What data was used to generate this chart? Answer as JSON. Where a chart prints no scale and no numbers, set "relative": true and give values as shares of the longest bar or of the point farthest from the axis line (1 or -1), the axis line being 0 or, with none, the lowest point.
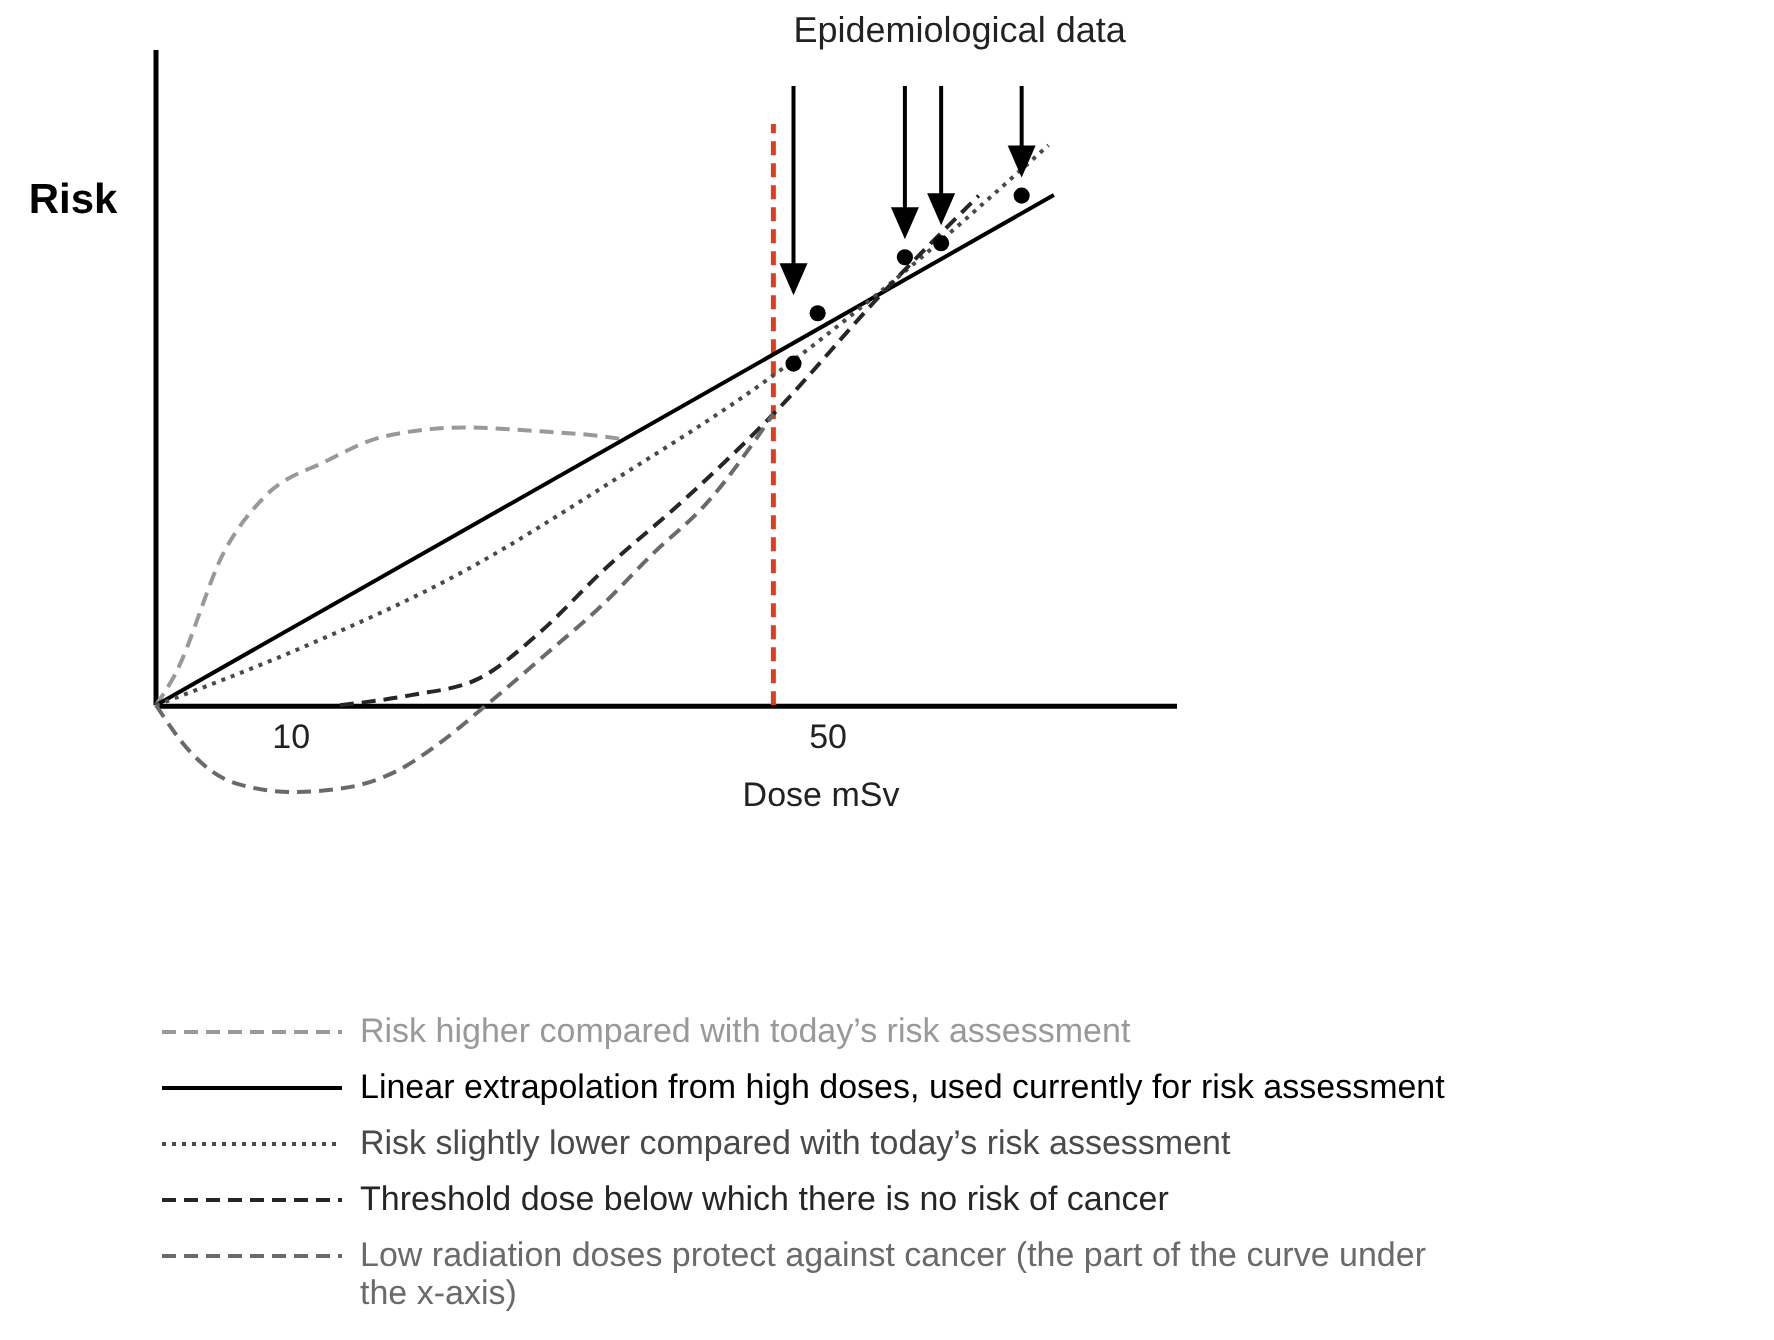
{
  "chart_data": {
    "type": "line",
    "relative": true,
    "xlabel": "Dose mSv",
    "ylabel": "Risk",
    "xlim": [
      0,
      76
    ],
    "xticks": [
      10,
      50
    ],
    "tick_labels": "x",
    "legend": "bottom",
    "annotations": [
      "Epidemiological data"
    ],
    "ref_lines": [
      {
        "axis": "x",
        "value": 46,
        "color": "#e03c1f",
        "line_style": "dashed"
      }
    ],
    "series": [
      {
        "name": "Risk higher compared with today’s risk assessment",
        "color": "#999999",
        "line_style": "dashed",
        "x": [
          0,
          1.4,
          5.1,
          8,
          12.7,
          17,
          23,
          28,
          33.3,
          34.8
        ],
        "values": [
          0,
          0.054,
          0.275,
          0.37,
          0.436,
          0.48,
          0.496,
          0.49,
          0.48,
          0.475
        ]
      },
      {
        "name": "Linear extrapolation from high doses, used currently for risk assessment",
        "color": "#000000",
        "line_style": "solid",
        "x": [
          0,
          66.9
        ],
        "values": [
          0,
          0.911
        ]
      },
      {
        "name": "Risk slightly lower compared with today’s risk assessment",
        "color": "#4a4a4a",
        "line_style": "dotted",
        "x": [
          0,
          10.2,
          23,
          34,
          46,
          53.9,
          66.5
        ],
        "values": [
          0,
          0.096,
          0.24,
          0.4,
          0.589,
          0.737,
          1.0
        ]
      },
      {
        "name": "Threshold dose below which there is no risk of cancer",
        "color": "#262626",
        "line_style": "dashed",
        "x": [
          13.7,
          19,
          24,
          28.6,
          33.3,
          39.5,
          46,
          53.9,
          61.3
        ],
        "values": [
          0,
          0.018,
          0.047,
          0.13,
          0.24,
          0.37,
          0.52,
          0.73,
          0.91
        ]
      },
      {
        "name": "Low radiation doses protect against cancer (the part of the curve under the x-axis)",
        "color": "#6a6a6a",
        "line_style": "dashed",
        "x": [
          0,
          2.5,
          6,
          10.2,
          14,
          17.9,
          21,
          24.6,
          29,
          33.3,
          37,
          41,
          46
        ],
        "values": [
          0,
          -0.082,
          -0.14,
          -0.155,
          -0.148,
          -0.118,
          -0.07,
          0,
          0.09,
          0.18,
          0.27,
          0.36,
          0.52
        ]
      },
      {
        "type": "scatter",
        "color": "#000000",
        "marker": "circle",
        "x": [
          47.5,
          49.3,
          55.8,
          58.5,
          64.5
        ],
        "values": [
          0.61,
          0.7,
          0.8,
          0.825,
          0.91
        ]
      }
    ]
  }
}
